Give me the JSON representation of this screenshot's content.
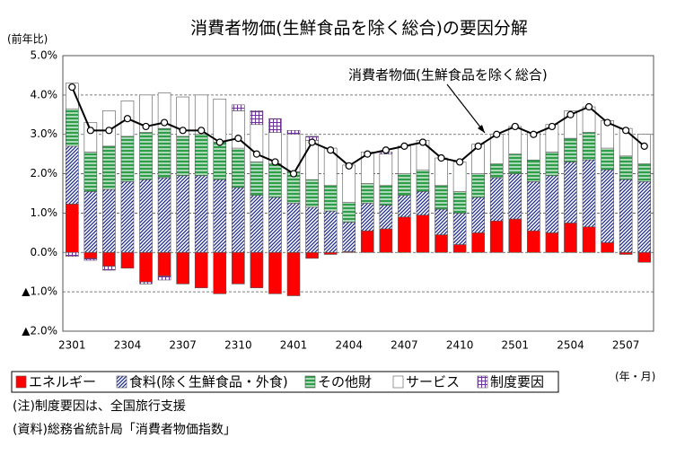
{
  "chart_data": {
    "type": "bar",
    "title": "消費者物価(生鮮食品を除く総合)の要因分解",
    "y_label": "(前年比)",
    "x_label": "(年・月)",
    "notes": [
      "(注)制度要因は、全国旅行支援",
      "(資料)総務省統計局「消費者物価指数」"
    ],
    "categories": [
      "2301",
      null,
      null,
      "2304",
      null,
      null,
      "2307",
      null,
      null,
      "2310",
      null,
      null,
      "2401",
      null,
      null,
      "2404",
      null,
      null,
      "2407",
      null,
      null,
      "2410",
      null,
      null,
      "2501",
      null,
      null,
      "2504",
      null,
      null,
      "2507",
      null
    ],
    "ylim": [
      -2,
      5
    ],
    "yticks": [
      {
        "value": 5,
        "label": "5.0%"
      },
      {
        "value": 4,
        "label": "4.0%"
      },
      {
        "value": 3,
        "label": "3.0%"
      },
      {
        "value": 2,
        "label": "2.0%"
      },
      {
        "value": 1,
        "label": "1.0%"
      },
      {
        "value": 0,
        "label": "0.0%"
      },
      {
        "value": -1,
        "label": "▲1.0%"
      },
      {
        "value": -2,
        "label": "▲2.0%"
      }
    ],
    "grid": true,
    "series": [
      {
        "name": "エネルギー",
        "color": "#ff0000",
        "values": [
          1.23,
          -0.15,
          -0.35,
          -0.4,
          -0.75,
          -0.6,
          -0.8,
          -0.9,
          -1.05,
          -0.8,
          -0.9,
          -1.05,
          -1.1,
          -0.15,
          -0.05,
          0.02,
          0.55,
          0.6,
          0.9,
          0.95,
          0.45,
          0.2,
          0.5,
          0.8,
          0.85,
          0.55,
          0.5,
          0.75,
          0.65,
          0.25,
          -0.05,
          -0.25
        ]
      },
      {
        "name": "食料(除く生鮮食品・外食)",
        "color": "#1f2a8a",
        "values": [
          1.47,
          1.55,
          1.6,
          1.8,
          1.85,
          1.9,
          1.95,
          1.95,
          1.85,
          1.65,
          1.45,
          1.4,
          1.25,
          1.15,
          1.05,
          0.75,
          0.7,
          0.6,
          0.55,
          0.6,
          0.65,
          0.8,
          0.9,
          1.1,
          1.15,
          1.25,
          1.45,
          1.55,
          1.7,
          1.85,
          1.85,
          1.8
        ]
      },
      {
        "name": "その他財",
        "color": "#2e9e4a",
        "values": [
          0.95,
          1.0,
          1.1,
          1.15,
          1.2,
          1.25,
          1.0,
          1.05,
          0.95,
          1.0,
          0.85,
          0.85,
          0.8,
          0.7,
          0.65,
          0.5,
          0.5,
          0.5,
          0.55,
          0.55,
          0.6,
          0.55,
          0.6,
          0.35,
          0.5,
          0.55,
          0.6,
          0.6,
          0.7,
          0.55,
          0.6,
          0.45
        ]
      },
      {
        "name": "サービス",
        "color": "#ffffff",
        "values": [
          0.65,
          0.75,
          0.9,
          0.9,
          0.95,
          0.9,
          1.0,
          1.0,
          1.1,
          0.95,
          0.95,
          0.8,
          0.95,
          1.0,
          0.95,
          0.95,
          0.8,
          0.8,
          0.7,
          0.75,
          0.7,
          0.75,
          0.75,
          0.75,
          0.7,
          0.7,
          0.7,
          0.7,
          0.65,
          0.7,
          0.7,
          0.75
        ]
      },
      {
        "name": "制度要因",
        "color": "#7030a0",
        "values": [
          -0.1,
          -0.05,
          -0.1,
          0,
          -0.05,
          -0.1,
          0,
          0,
          0,
          0.15,
          0.35,
          0.35,
          0.1,
          0.1,
          0,
          0,
          0,
          0.05,
          0,
          0,
          0,
          0,
          0,
          0,
          0,
          0,
          0,
          0,
          0,
          0,
          0,
          0
        ]
      }
    ],
    "line": {
      "name": "消費者物価(生鮮食品を除く総合)",
      "color": "#000000",
      "values": [
        4.2,
        3.1,
        3.1,
        3.4,
        3.2,
        3.3,
        3.1,
        3.1,
        2.8,
        2.9,
        2.5,
        2.3,
        2.0,
        2.8,
        2.6,
        2.2,
        2.5,
        2.6,
        2.7,
        2.8,
        2.4,
        2.3,
        2.7,
        3.0,
        3.2,
        3.0,
        3.2,
        3.5,
        3.7,
        3.3,
        3.1,
        2.7
      ]
    }
  }
}
